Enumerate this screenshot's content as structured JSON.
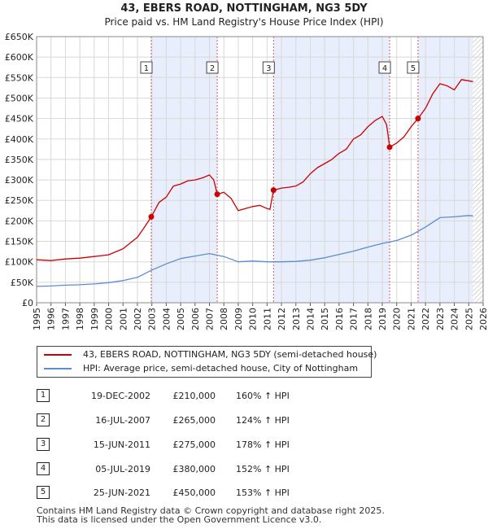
{
  "chart_data": {
    "type": "line",
    "title": "43, EBERS ROAD, NOTTINGHAM, NG3 5DY",
    "subtitle": "Price paid vs. HM Land Registry's House Price Index (HPI)",
    "xlabel": "",
    "ylabel": "",
    "xlim": [
      1995,
      2026
    ],
    "ylim": [
      0,
      650000
    ],
    "yticks": [
      {
        "value": 0,
        "label": "£0"
      },
      {
        "value": 50000,
        "label": "£50K"
      },
      {
        "value": 100000,
        "label": "£100K"
      },
      {
        "value": 150000,
        "label": "£150K"
      },
      {
        "value": 200000,
        "label": "£200K"
      },
      {
        "value": 250000,
        "label": "£250K"
      },
      {
        "value": 300000,
        "label": "£300K"
      },
      {
        "value": 350000,
        "label": "£350K"
      },
      {
        "value": 400000,
        "label": "£400K"
      },
      {
        "value": 450000,
        "label": "£450K"
      },
      {
        "value": 500000,
        "label": "£500K"
      },
      {
        "value": 550000,
        "label": "£550K"
      },
      {
        "value": 600000,
        "label": "£600K"
      },
      {
        "value": 650000,
        "label": "£650K"
      }
    ],
    "xticks": [
      1995,
      1996,
      1997,
      1998,
      1999,
      2000,
      2001,
      2002,
      2003,
      2004,
      2005,
      2006,
      2007,
      2008,
      2009,
      2010,
      2011,
      2012,
      2013,
      2014,
      2015,
      2016,
      2017,
      2018,
      2019,
      2020,
      2021,
      2022,
      2023,
      2024,
      2025,
      2026
    ],
    "grid": true,
    "series": [
      {
        "name": "43, EBERS ROAD, NOTTINGHAM, NG3 5DY (semi-detached house)",
        "color": "#cc0000",
        "x": [
          1995.0,
          1996.0,
          1997.0,
          1998.0,
          1999.0,
          2000.0,
          2001.0,
          2002.0,
          2002.5,
          2002.96,
          2003.5,
          2004.0,
          2004.5,
          2005.0,
          2005.5,
          2006.0,
          2006.5,
          2007.0,
          2007.3,
          2007.54,
          2008.0,
          2008.5,
          2009.0,
          2009.5,
          2010.0,
          2010.5,
          2011.0,
          2011.2,
          2011.45,
          2012.0,
          2012.5,
          2013.0,
          2013.5,
          2014.0,
          2014.5,
          2015.0,
          2015.5,
          2016.0,
          2016.5,
          2017.0,
          2017.5,
          2018.0,
          2018.5,
          2019.0,
          2019.3,
          2019.51,
          2020.0,
          2020.5,
          2021.0,
          2021.48,
          2022.0,
          2022.5,
          2023.0,
          2023.5,
          2024.0,
          2024.5,
          2025.0,
          2025.3
        ],
        "y": [
          105000,
          103000,
          107000,
          109000,
          113000,
          117000,
          132000,
          160000,
          185000,
          210000,
          245000,
          258000,
          285000,
          290000,
          298000,
          300000,
          305000,
          312000,
          300000,
          265000,
          270000,
          255000,
          225000,
          230000,
          235000,
          238000,
          230000,
          228000,
          275000,
          280000,
          282000,
          285000,
          295000,
          315000,
          330000,
          340000,
          350000,
          365000,
          375000,
          400000,
          410000,
          430000,
          445000,
          455000,
          435000,
          380000,
          390000,
          405000,
          430000,
          450000,
          475000,
          510000,
          535000,
          530000,
          520000,
          545000,
          542000,
          540000
        ]
      },
      {
        "name": "HPI: Average price, semi-detached house, City of Nottingham",
        "color": "#5b8dd0",
        "x": [
          1995.0,
          1996.0,
          1997.0,
          1998.0,
          1999.0,
          2000.0,
          2001.0,
          2002.0,
          2003.0,
          2004.0,
          2005.0,
          2006.0,
          2007.0,
          2008.0,
          2009.0,
          2010.0,
          2011.0,
          2012.0,
          2013.0,
          2014.0,
          2015.0,
          2016.0,
          2017.0,
          2018.0,
          2019.0,
          2020.0,
          2021.0,
          2022.0,
          2023.0,
          2024.0,
          2025.0,
          2025.3
        ],
        "y": [
          40000,
          41000,
          43000,
          44000,
          46000,
          49000,
          54000,
          62000,
          80000,
          95000,
          108000,
          114000,
          120000,
          113000,
          100000,
          102000,
          100000,
          100000,
          101000,
          104000,
          110000,
          118000,
          126000,
          136000,
          145000,
          152000,
          165000,
          185000,
          208000,
          210000,
          213000,
          212000
        ]
      }
    ],
    "sales": [
      {
        "id": "1",
        "x": 2002.96,
        "price": 210000
      },
      {
        "id": "2",
        "x": 2007.54,
        "price": 265000
      },
      {
        "id": "3",
        "x": 2011.45,
        "price": 275000
      },
      {
        "id": "4",
        "x": 2019.51,
        "price": 380000
      },
      {
        "id": "5",
        "x": 2021.48,
        "price": 450000
      }
    ],
    "shaded_ranges": [
      [
        2002.96,
        2007.54
      ],
      [
        2011.45,
        2019.51
      ],
      [
        2021.48,
        2025.3
      ]
    ],
    "future_hatch_from": 2025.3
  },
  "legend": {
    "property": "43, EBERS ROAD, NOTTINGHAM, NG3 5DY (semi-detached house)",
    "hpi": "HPI: Average price, semi-detached house, City of Nottingham"
  },
  "sales_table": [
    {
      "id": "1",
      "date": "19-DEC-2002",
      "price": "£210,000",
      "hpi": "160% ↑ HPI"
    },
    {
      "id": "2",
      "date": "16-JUL-2007",
      "price": "£265,000",
      "hpi": "124% ↑ HPI"
    },
    {
      "id": "3",
      "date": "15-JUN-2011",
      "price": "£275,000",
      "hpi": "178% ↑ HPI"
    },
    {
      "id": "4",
      "date": "05-JUL-2019",
      "price": "£380,000",
      "hpi": "152% ↑ HPI"
    },
    {
      "id": "5",
      "date": "25-JUN-2021",
      "price": "£450,000",
      "hpi": "153% ↑ HPI"
    }
  ],
  "footer": {
    "line1": "Contains HM Land Registry data © Crown copyright and database right 2025.",
    "line2": "This data is licensed under the Open Government Licence v3.0."
  }
}
